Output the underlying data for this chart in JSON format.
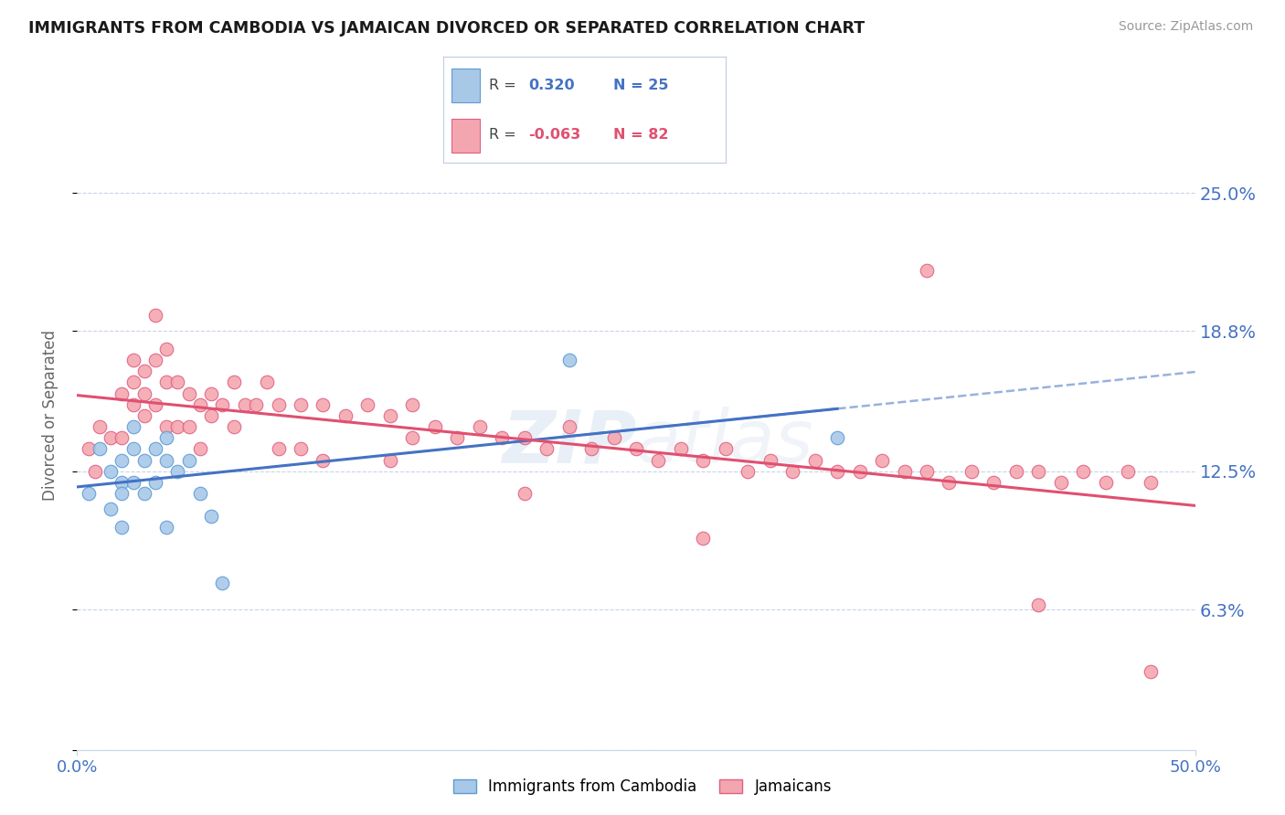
{
  "title": "IMMIGRANTS FROM CAMBODIA VS JAMAICAN DIVORCED OR SEPARATED CORRELATION CHART",
  "source": "Source: ZipAtlas.com",
  "ylabel": "Divorced or Separated",
  "xlim": [
    0.0,
    0.5
  ],
  "ylim": [
    0.0,
    0.3
  ],
  "xtick_labels": [
    "0.0%",
    "50.0%"
  ],
  "ytick_values": [
    0.0,
    0.063,
    0.125,
    0.188,
    0.25
  ],
  "ytick_labels": [
    "",
    "6.3%",
    "12.5%",
    "18.8%",
    "25.0%"
  ],
  "legend_label1": "Immigrants from Cambodia",
  "legend_label2": "Jamaicans",
  "watermark": "ZIPatlas",
  "blue_color": "#a8c8e8",
  "blue_edge_color": "#5b9bd5",
  "pink_color": "#f4a6b0",
  "pink_edge_color": "#e06080",
  "blue_line_color": "#4472c4",
  "pink_line_color": "#e05070",
  "axis_label_color": "#4472c4",
  "grid_color": "#c8d4e8",
  "r1_color": "#4472c4",
  "r2_color": "#e05070",
  "cambodia_x": [
    0.005,
    0.01,
    0.015,
    0.015,
    0.02,
    0.02,
    0.02,
    0.02,
    0.025,
    0.025,
    0.025,
    0.03,
    0.03,
    0.035,
    0.035,
    0.04,
    0.04,
    0.04,
    0.045,
    0.05,
    0.055,
    0.06,
    0.065,
    0.22,
    0.34
  ],
  "cambodia_y": [
    0.115,
    0.135,
    0.125,
    0.108,
    0.13,
    0.12,
    0.115,
    0.1,
    0.145,
    0.135,
    0.12,
    0.13,
    0.115,
    0.135,
    0.12,
    0.14,
    0.13,
    0.1,
    0.125,
    0.13,
    0.115,
    0.105,
    0.075,
    0.175,
    0.14
  ],
  "jamaican_x": [
    0.005,
    0.008,
    0.01,
    0.015,
    0.02,
    0.02,
    0.025,
    0.025,
    0.025,
    0.03,
    0.03,
    0.03,
    0.035,
    0.035,
    0.035,
    0.04,
    0.04,
    0.04,
    0.045,
    0.045,
    0.05,
    0.05,
    0.055,
    0.055,
    0.06,
    0.06,
    0.065,
    0.07,
    0.07,
    0.075,
    0.08,
    0.085,
    0.09,
    0.09,
    0.1,
    0.1,
    0.11,
    0.11,
    0.12,
    0.13,
    0.14,
    0.14,
    0.15,
    0.15,
    0.16,
    0.17,
    0.18,
    0.19,
    0.2,
    0.21,
    0.22,
    0.23,
    0.24,
    0.25,
    0.26,
    0.27,
    0.28,
    0.29,
    0.3,
    0.31,
    0.32,
    0.33,
    0.34,
    0.35,
    0.36,
    0.37,
    0.38,
    0.39,
    0.4,
    0.41,
    0.42,
    0.43,
    0.44,
    0.45,
    0.46,
    0.47,
    0.48,
    0.38,
    0.2,
    0.28,
    0.43,
    0.48
  ],
  "jamaican_y": [
    0.135,
    0.125,
    0.145,
    0.14,
    0.16,
    0.14,
    0.175,
    0.165,
    0.155,
    0.17,
    0.16,
    0.15,
    0.195,
    0.175,
    0.155,
    0.18,
    0.165,
    0.145,
    0.165,
    0.145,
    0.16,
    0.145,
    0.155,
    0.135,
    0.16,
    0.15,
    0.155,
    0.165,
    0.145,
    0.155,
    0.155,
    0.165,
    0.155,
    0.135,
    0.155,
    0.135,
    0.155,
    0.13,
    0.15,
    0.155,
    0.15,
    0.13,
    0.155,
    0.14,
    0.145,
    0.14,
    0.145,
    0.14,
    0.14,
    0.135,
    0.145,
    0.135,
    0.14,
    0.135,
    0.13,
    0.135,
    0.13,
    0.135,
    0.125,
    0.13,
    0.125,
    0.13,
    0.125,
    0.125,
    0.13,
    0.125,
    0.125,
    0.12,
    0.125,
    0.12,
    0.125,
    0.125,
    0.12,
    0.125,
    0.12,
    0.125,
    0.12,
    0.215,
    0.115,
    0.095,
    0.065,
    0.035
  ]
}
